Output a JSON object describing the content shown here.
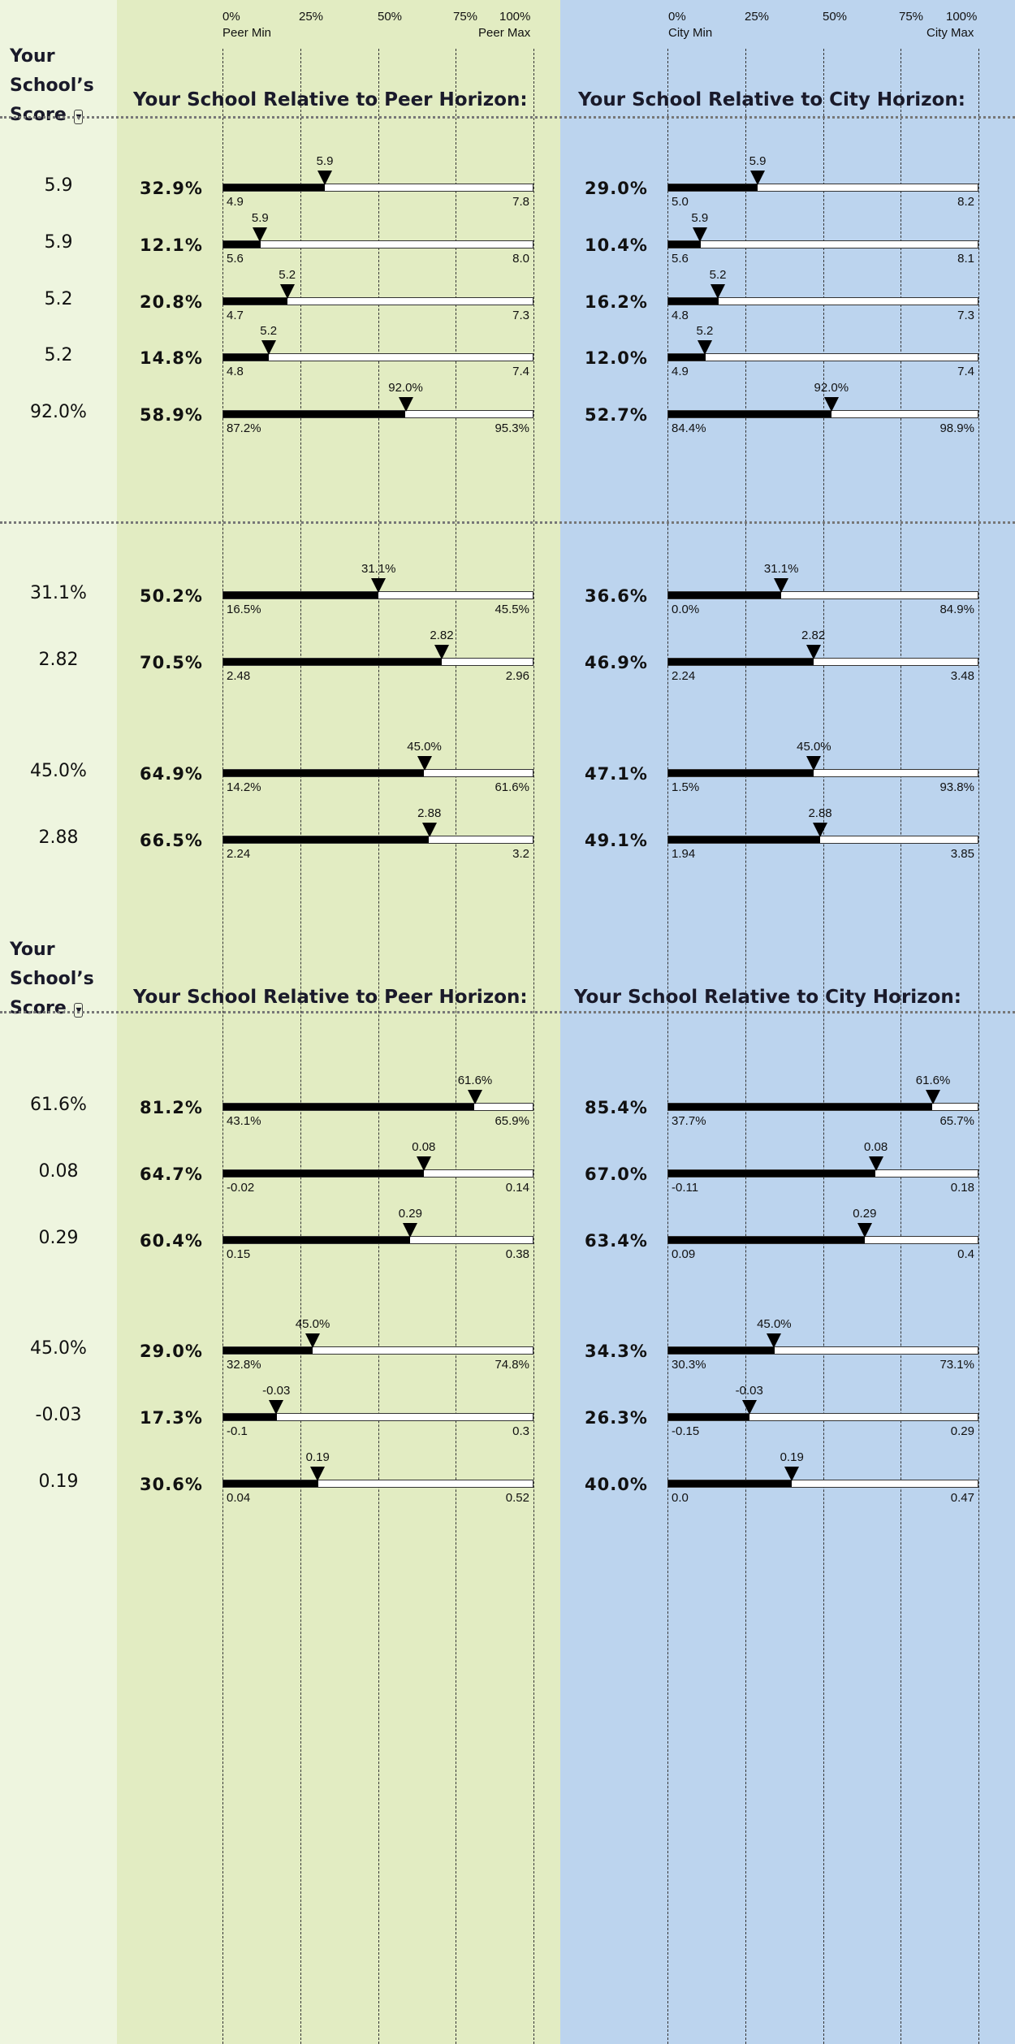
{
  "colors": {
    "score_bg": "#eef5df",
    "peer_bg": "#e2ecc2",
    "city_bg": "#bcd4ee",
    "bar_fill": "#000000"
  },
  "peer_axis": {
    "ticks": [
      "0%",
      "25%",
      "50%",
      "75%",
      "100%"
    ],
    "min_label": "Peer Min",
    "max_label": "Peer Max"
  },
  "city_axis": {
    "ticks": [
      "0%",
      "25%",
      "50%",
      "75%",
      "100%"
    ],
    "min_label": "City Min",
    "max_label": "City Max"
  },
  "headers": [
    {
      "score_title": [
        "Your",
        "School’s",
        "Score"
      ],
      "peer_title": "Your School Relative to Peer Horizon:",
      "city_title": "Your School Relative to City Horizon:"
    },
    {
      "score_title": [
        "Your",
        "School’s",
        "Score"
      ],
      "peer_title": "Your School Relative to Peer Horizon:",
      "city_title": "Your School Relative to City Horizon:"
    }
  ],
  "chart_data": {
    "type": "bar",
    "x_range": [
      0,
      100
    ],
    "rows": [
      {
        "score": "5.9",
        "peer": {
          "pct": "32.9%",
          "value": 32.9,
          "min": "4.9",
          "max": "7.8"
        },
        "city": {
          "pct": "29.0%",
          "value": 29.0,
          "min": "5.0",
          "max": "8.2"
        }
      },
      {
        "score": "5.9",
        "peer": {
          "pct": "12.1%",
          "value": 12.1,
          "min": "5.6",
          "max": "8.0"
        },
        "city": {
          "pct": "10.4%",
          "value": 10.4,
          "min": "5.6",
          "max": "8.1"
        }
      },
      {
        "score": "5.2",
        "peer": {
          "pct": "20.8%",
          "value": 20.8,
          "min": "4.7",
          "max": "7.3"
        },
        "city": {
          "pct": "16.2%",
          "value": 16.2,
          "min": "4.8",
          "max": "7.3"
        }
      },
      {
        "score": "5.2",
        "peer": {
          "pct": "14.8%",
          "value": 14.8,
          "min": "4.8",
          "max": "7.4"
        },
        "city": {
          "pct": "12.0%",
          "value": 12.0,
          "min": "4.9",
          "max": "7.4"
        }
      },
      {
        "score": "92.0%",
        "peer": {
          "pct": "58.9%",
          "value": 58.9,
          "min": "87.2%",
          "max": "95.3%"
        },
        "city": {
          "pct": "52.7%",
          "value": 52.7,
          "min": "84.4%",
          "max": "98.9%"
        }
      },
      {
        "score": "31.1%",
        "peer": {
          "pct": "50.2%",
          "value": 50.2,
          "min": "16.5%",
          "max": "45.5%"
        },
        "city": {
          "pct": "36.6%",
          "value": 36.6,
          "min": "0.0%",
          "max": "84.9%"
        }
      },
      {
        "score": "2.82",
        "peer": {
          "pct": "70.5%",
          "value": 70.5,
          "min": "2.48",
          "max": "2.96"
        },
        "city": {
          "pct": "46.9%",
          "value": 46.9,
          "min": "2.24",
          "max": "3.48"
        }
      },
      {
        "score": "45.0%",
        "peer": {
          "pct": "64.9%",
          "value": 64.9,
          "min": "14.2%",
          "max": "61.6%"
        },
        "city": {
          "pct": "47.1%",
          "value": 47.1,
          "min": "1.5%",
          "max": "93.8%"
        }
      },
      {
        "score": "2.88",
        "peer": {
          "pct": "66.5%",
          "value": 66.5,
          "min": "2.24",
          "max": "3.2"
        },
        "city": {
          "pct": "49.1%",
          "value": 49.1,
          "min": "1.94",
          "max": "3.85"
        }
      },
      {
        "score": "61.6%",
        "peer": {
          "pct": "81.2%",
          "value": 81.2,
          "min": "43.1%",
          "max": "65.9%"
        },
        "city": {
          "pct": "85.4%",
          "value": 85.4,
          "min": "37.7%",
          "max": "65.7%"
        }
      },
      {
        "score": "0.08",
        "peer": {
          "pct": "64.7%",
          "value": 64.7,
          "min": "-0.02",
          "max": "0.14"
        },
        "city": {
          "pct": "67.0%",
          "value": 67.0,
          "min": "-0.11",
          "max": "0.18"
        }
      },
      {
        "score": "0.29",
        "peer": {
          "pct": "60.4%",
          "value": 60.4,
          "min": "0.15",
          "max": "0.38"
        },
        "city": {
          "pct": "63.4%",
          "value": 63.4,
          "min": "0.09",
          "max": "0.4"
        }
      },
      {
        "score": "45.0%",
        "peer": {
          "pct": "29.0%",
          "value": 29.0,
          "min": "32.8%",
          "max": "74.8%"
        },
        "city": {
          "pct": "34.3%",
          "value": 34.3,
          "min": "30.3%",
          "max": "73.1%"
        }
      },
      {
        "score": "-0.03",
        "peer": {
          "pct": "17.3%",
          "value": 17.3,
          "min": "-0.1",
          "max": "0.3"
        },
        "city": {
          "pct": "26.3%",
          "value": 26.3,
          "min": "-0.15",
          "max": "0.29"
        }
      },
      {
        "score": "0.19",
        "peer": {
          "pct": "30.6%",
          "value": 30.6,
          "min": "0.04",
          "max": "0.52"
        },
        "city": {
          "pct": "40.0%",
          "value": 40.0,
          "min": "0.0",
          "max": "0.47"
        }
      }
    ]
  }
}
